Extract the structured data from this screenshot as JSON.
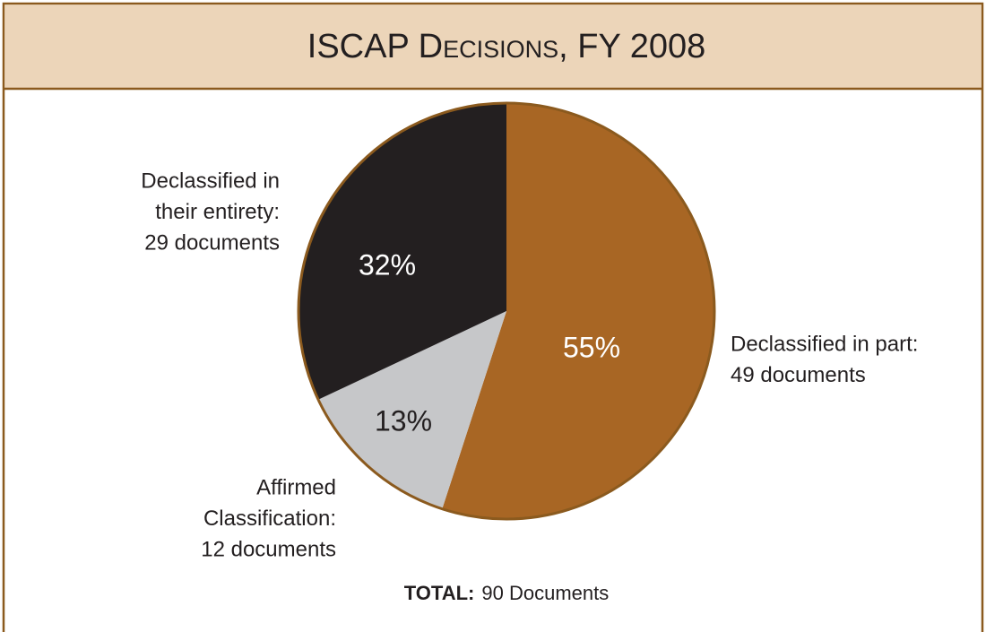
{
  "chart_data": {
    "type": "pie",
    "title": "ISCAP Decisions, FY 2008",
    "categories": [
      [
        "Declassified in part:",
        "49 documents"
      ],
      [
        "Affirmed",
        "Classification:",
        "12 documents"
      ],
      [
        "Declassified in",
        "their entirety:",
        "29 documents"
      ]
    ],
    "values": [
      55,
      13,
      32
    ],
    "value_labels": [
      "55%",
      "13%",
      "32%"
    ],
    "colors": [
      "#a86624",
      "#c6c7c9",
      "#231f20"
    ],
    "total_label": "TOTAL:",
    "total": "90 Documents"
  }
}
